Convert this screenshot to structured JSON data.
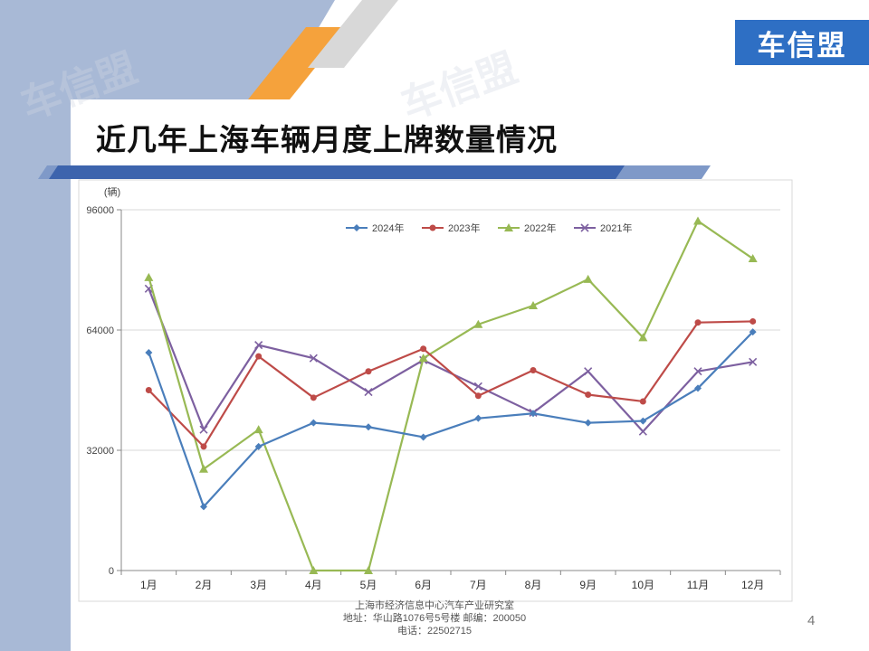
{
  "slide": {
    "logo_text": "车信盟",
    "title": "近几年上海车辆月度上牌数量情况",
    "footer_line1": "上海市经济信息中心汽车产业研究室",
    "footer_line2": "地址：华山路1076号5号楼    邮编：200050",
    "footer_line3": "电话：22502715",
    "page_number": "4",
    "watermark": "车信盟"
  },
  "colors": {
    "brand_blue": "#2e6fc4",
    "left_band": "#a8b9d6",
    "accent_orange": "#f5a23c"
  },
  "chart_data": {
    "type": "line",
    "ylabel": "(辆)",
    "xlabel": "",
    "categories": [
      "1月",
      "2月",
      "3月",
      "4月",
      "5月",
      "6月",
      "7月",
      "8月",
      "9月",
      "10月",
      "11月",
      "12月"
    ],
    "ylim": [
      0,
      96000
    ],
    "yticks": [
      0,
      32000,
      64000,
      96000
    ],
    "ytick_labels": [
      "0",
      "32000",
      "64000",
      "96000"
    ],
    "legend_position": "top",
    "grid": true,
    "series": [
      {
        "name": "2024年",
        "color": "#4a7ebb",
        "marker": "diamond",
        "values": [
          58000,
          17000,
          33000,
          39300,
          38200,
          35500,
          40500,
          41800,
          39300,
          39800,
          48500,
          63500
        ]
      },
      {
        "name": "2023年",
        "color": "#be4b48",
        "marker": "circle",
        "values": [
          48000,
          33000,
          57000,
          46000,
          53000,
          59000,
          46500,
          53300,
          46800,
          45000,
          66000,
          66300
        ]
      },
      {
        "name": "2022年",
        "color": "#98b954",
        "marker": "triangle",
        "values": [
          78000,
          27000,
          37500,
          0,
          0,
          56500,
          65500,
          70500,
          77500,
          62000,
          93000,
          83000
        ]
      },
      {
        "name": "2021年",
        "color": "#7d60a0",
        "marker": "x",
        "values": [
          75000,
          37500,
          60000,
          56500,
          47500,
          56000,
          49000,
          42000,
          53000,
          37000,
          53000,
          55500
        ]
      }
    ]
  }
}
